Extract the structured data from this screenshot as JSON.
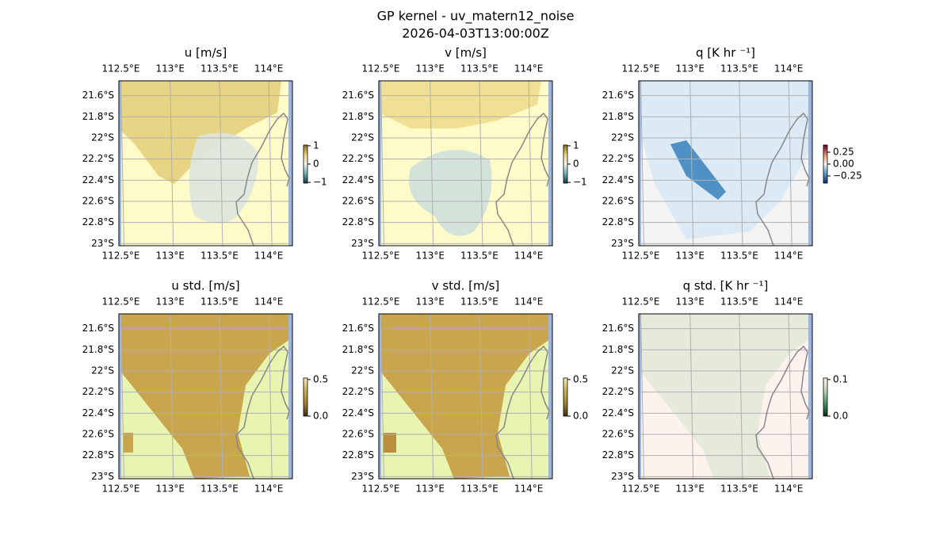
{
  "title": "GP kernel - uv_matern12_noise",
  "subtitle": "2026-04-03T13:00:00Z",
  "panels": [
    {
      "title": "u [m/s]",
      "colorbar": {
        "lim": [
          -1.04,
          1.04
        ],
        "ticks": [
          1,
          0,
          {
            "value": -1,
            "label": "−1"
          }
        ]
      }
    },
    {
      "title": "v [m/s]",
      "colorbar": {
        "lim": [
          -1.04,
          1.04
        ],
        "ticks": [
          1,
          0,
          {
            "value": -1,
            "label": "−1"
          }
        ]
      }
    },
    {
      "title": "q [K hr ⁻¹]",
      "colorbar": {
        "lim": [
          -0.4,
          0.4
        ],
        "ticks": [
          0.25,
          {
            "value": 0,
            "label": "0.00"
          },
          {
            "value": -0.25,
            "label": "−0.25"
          }
        ]
      }
    },
    {
      "title": "u std. [m/s]",
      "colorbar": {
        "lim": [
          0,
          0.52
        ],
        "ticks": [
          0.5,
          {
            "value": 0,
            "label": "0.0"
          }
        ]
      }
    },
    {
      "title": "v std. [m/s]",
      "colorbar": {
        "lim": [
          0,
          0.52
        ],
        "ticks": [
          0.5,
          {
            "value": 0,
            "label": "0.0"
          }
        ]
      }
    },
    {
      "title": "q std. [K hr ⁻¹]",
      "colorbar": {
        "lim": [
          0,
          0.104
        ],
        "ticks": [
          0.1,
          {
            "value": 0,
            "label": "0.0"
          }
        ]
      }
    }
  ],
  "xlim": [
    112.48,
    114.24
  ],
  "ylim": [
    -21.46,
    -23.02
  ],
  "xticks": [
    {
      "value": 112.5,
      "label": "112.5°E"
    },
    {
      "value": 113,
      "label": "113°E"
    },
    {
      "value": 113.5,
      "label": "113.5°E"
    },
    {
      "value": 114,
      "label": "114°E"
    }
  ],
  "yticks": [
    {
      "value": -21.6,
      "label": "21.6°S"
    },
    {
      "value": -21.8,
      "label": "21.8°S"
    },
    {
      "value": -22,
      "label": "22°S"
    },
    {
      "value": -22.2,
      "label": "22.2°S"
    },
    {
      "value": -22.4,
      "label": "22.4°S"
    },
    {
      "value": -22.6,
      "label": "22.6°S"
    },
    {
      "value": -22.8,
      "label": "22.8°S"
    },
    {
      "value": -23,
      "label": "23°S"
    }
  ]
}
